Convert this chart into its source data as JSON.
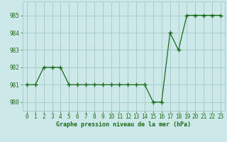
{
  "x": [
    0,
    1,
    2,
    3,
    4,
    5,
    6,
    7,
    8,
    9,
    10,
    11,
    12,
    13,
    14,
    15,
    16,
    17,
    18,
    19,
    20,
    21,
    22,
    23
  ],
  "y": [
    981,
    981,
    982,
    982,
    982,
    981,
    981,
    981,
    981,
    981,
    981,
    981,
    981,
    981,
    981,
    980,
    980,
    984,
    983,
    985,
    985,
    985,
    985,
    985
  ],
  "line_color": "#1a6b1a",
  "marker_color": "#1a6b1a",
  "bg_color": "#cce8e8",
  "grid_color": "#a8cccc",
  "text_color": "#1a6b1a",
  "xlabel": "Graphe pression niveau de la mer (hPa)",
  "ylim": [
    979.5,
    985.8
  ],
  "xlim": [
    -0.5,
    23.5
  ],
  "yticks": [
    980,
    981,
    982,
    983,
    984,
    985
  ],
  "xticks": [
    0,
    1,
    2,
    3,
    4,
    5,
    6,
    7,
    8,
    9,
    10,
    11,
    12,
    13,
    14,
    15,
    16,
    17,
    18,
    19,
    20,
    21,
    22,
    23
  ],
  "xtick_labels": [
    "0",
    "1",
    "2",
    "3",
    "4",
    "5",
    "6",
    "7",
    "8",
    "9",
    "10",
    "11",
    "12",
    "13",
    "14",
    "15",
    "16",
    "17",
    "18",
    "19",
    "20",
    "21",
    "22",
    "23"
  ],
  "ytick_labels": [
    "980",
    "981",
    "982",
    "983",
    "984",
    "985"
  ],
  "xlabel_fontsize": 6.0,
  "tick_fontsize": 5.5
}
